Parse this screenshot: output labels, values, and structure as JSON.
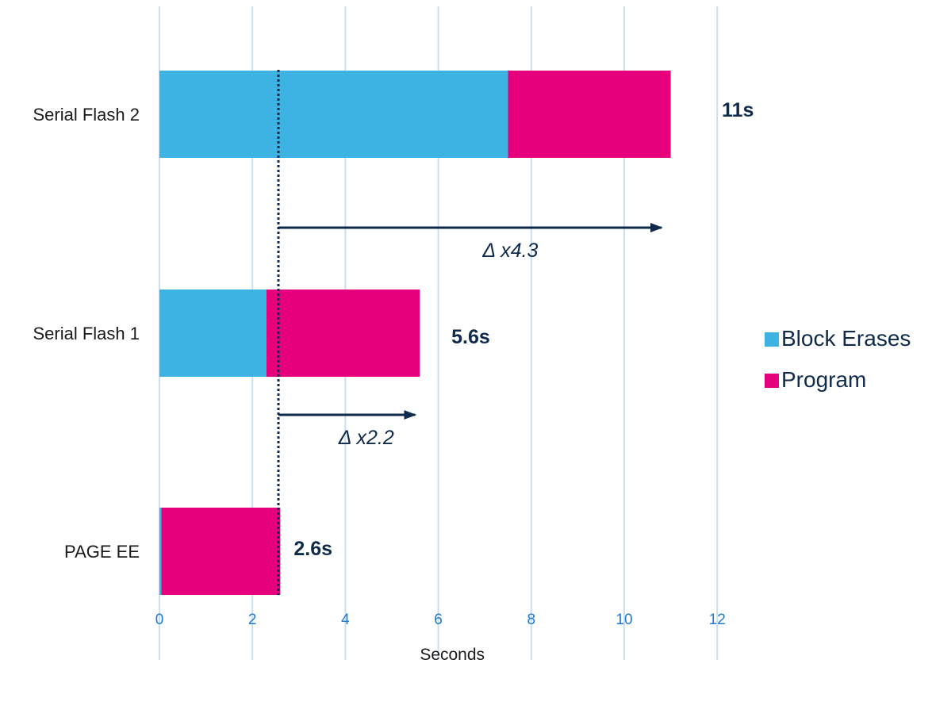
{
  "chart_data": {
    "type": "bar",
    "orientation": "horizontal",
    "stacked": true,
    "categories": [
      "Serial Flash 2",
      "Serial Flash 1",
      "PAGE EE"
    ],
    "series": [
      {
        "name": "Block Erases",
        "color": "#3db3e3",
        "values": [
          7.5,
          2.3,
          0.04
        ]
      },
      {
        "name": "Program",
        "color": "#e6007e",
        "values": [
          3.5,
          3.3,
          2.56
        ]
      }
    ],
    "totals": [
      "11s",
      "5.6s",
      "2.6s"
    ],
    "xlabel": "Seconds",
    "xlim": [
      0,
      12
    ],
    "xticks": [
      0,
      2,
      4,
      6,
      8,
      10,
      12
    ],
    "xtick_labels": [
      "0",
      "2",
      "4",
      "6",
      "8",
      "10",
      "12"
    ],
    "grid": "vertical",
    "legend_position": "right",
    "reference_line": {
      "x": 2.56,
      "style": "dotted"
    },
    "annotations": [
      {
        "text": "Δ x4.3",
        "from_x": 2.56,
        "to_x": 10.8,
        "after_category": "Serial Flash 2"
      },
      {
        "text": "Δ x2.2",
        "from_x": 2.56,
        "to_x": 5.5,
        "after_category": "Serial Flash 1"
      }
    ],
    "colors": {
      "grid": "#c9dff2",
      "tick_label": "#1f7ad6",
      "arrow": "#0f2a4a",
      "reference_line": "#0f2a4a"
    }
  }
}
